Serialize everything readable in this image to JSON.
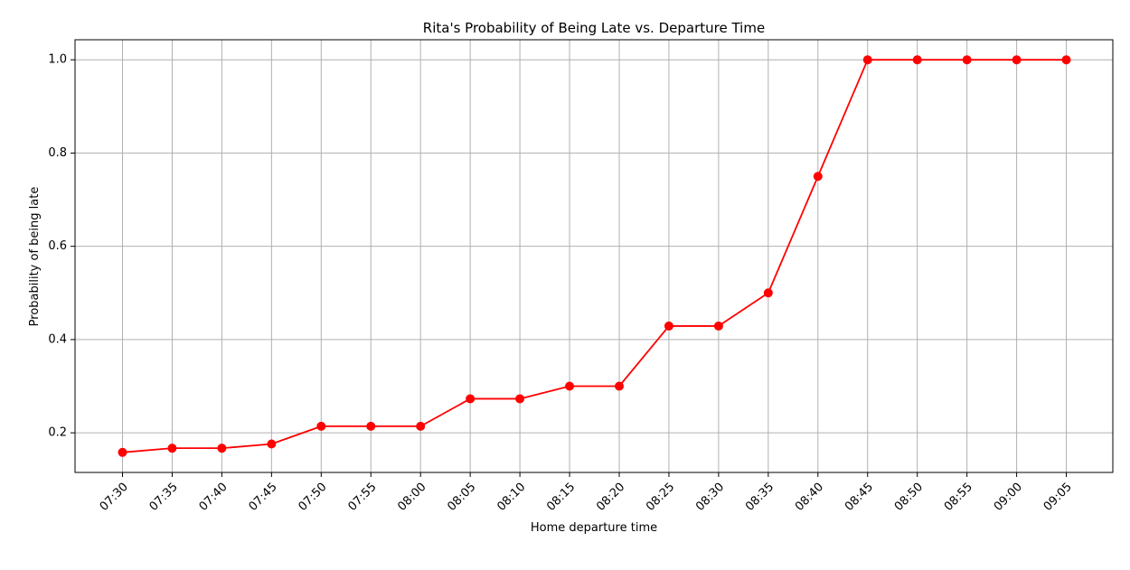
{
  "chart_data": {
    "type": "line",
    "title": "Rita's Probability of Being Late vs. Departure Time",
    "xlabel": "Home departure time",
    "ylabel": "Probability of being late",
    "categories": [
      "07:30",
      "07:35",
      "07:40",
      "07:45",
      "07:50",
      "07:55",
      "08:00",
      "08:05",
      "08:10",
      "08:15",
      "08:20",
      "08:25",
      "08:30",
      "08:35",
      "08:40",
      "08:45",
      "08:50",
      "08:55",
      "09:00",
      "09:05"
    ],
    "series": [
      {
        "values": [
          0.158,
          0.167,
          0.167,
          0.176,
          0.214,
          0.214,
          0.214,
          0.273,
          0.273,
          0.3,
          0.3,
          0.429,
          0.429,
          0.5,
          0.75,
          1.0,
          1.0,
          1.0,
          1.0,
          1.0
        ],
        "color": "#ff0000",
        "marker": "circle"
      }
    ],
    "ylim": [
      0.115,
      1.043
    ],
    "yticks": [
      0.2,
      0.4,
      0.6,
      0.8,
      1.0
    ],
    "ytick_labels": [
      "0.2",
      "0.4",
      "0.6",
      "0.8",
      "1.0"
    ],
    "grid": true,
    "grid_color": "#b0b0b0",
    "xtick_rotation_deg": 45
  }
}
